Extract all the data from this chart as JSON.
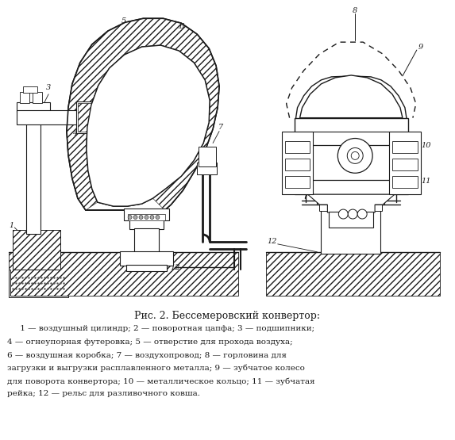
{
  "title": "Рис. 2. Бессемеровский конвертор:",
  "caption_lines": [
    "     1 — воздушный цилиндр; 2 — поворотная цапфа; 3 — подшипники;",
    "4 — огнеупорная футеровка; 5 — отверстие для прохода воздуха;",
    "6 — воздушная коробка; 7 — воздухопровод; 8 — горловина для",
    "загрузки и выгрузки расплавленного металла; 9 — зубчатое колесо",
    "для поворота конвертора; 10 — металлическое кольцо; 11 — зубчатая",
    "рейка; 12 — рельс для разливочного ковша."
  ],
  "bg_color": "#ffffff",
  "line_color": "#1a1a1a",
  "figsize": [
    5.73,
    5.55
  ],
  "dpi": 100
}
